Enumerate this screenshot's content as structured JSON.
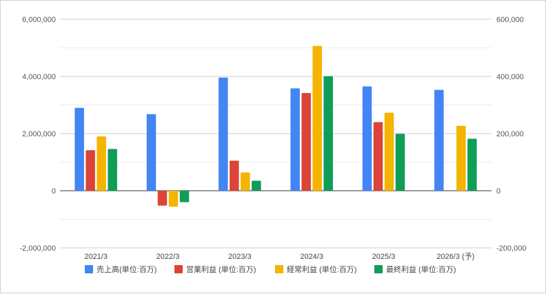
{
  "chart_data": {
    "type": "bar",
    "categories": [
      "2021/3",
      "2022/3",
      "2023/3",
      "2024/3",
      "2025/3",
      "2026/3 (予)"
    ],
    "series": [
      {
        "name": "売上高(単位:百万)",
        "axis": "left",
        "color": "#4285F4",
        "values": [
          2900000,
          2680000,
          3960000,
          3580000,
          3650000,
          3530000
        ]
      },
      {
        "name": "営業利益 (単位:百万)",
        "axis": "right",
        "color": "#DB4437",
        "values": [
          142000,
          -52000,
          105000,
          342000,
          240000,
          null
        ]
      },
      {
        "name": "経常利益 (単位:百万)",
        "axis": "right",
        "color": "#F4B400",
        "values": [
          190000,
          -56000,
          64000,
          507000,
          273000,
          227000
        ]
      },
      {
        "name": "最終利益 (単位:百万)",
        "axis": "right",
        "color": "#0F9D58",
        "values": [
          146000,
          -40000,
          35000,
          401000,
          199000,
          182000
        ]
      }
    ],
    "left_axis": {
      "ylim": [
        -2000000,
        6000000
      ],
      "ticks": [
        "6,000,000",
        "4,000,000",
        "2,000,000",
        "0",
        "-2,000,000"
      ],
      "tick_values": [
        6000000,
        4000000,
        2000000,
        0,
        -2000000
      ]
    },
    "right_axis": {
      "ylim": [
        -200000,
        600000
      ],
      "ticks": [
        "600,000",
        "400,000",
        "200,000",
        "0",
        "-200,000"
      ],
      "tick_values": [
        600000,
        400000,
        200000,
        0,
        -200000
      ]
    },
    "grid": true,
    "legend_position": "bottom"
  }
}
